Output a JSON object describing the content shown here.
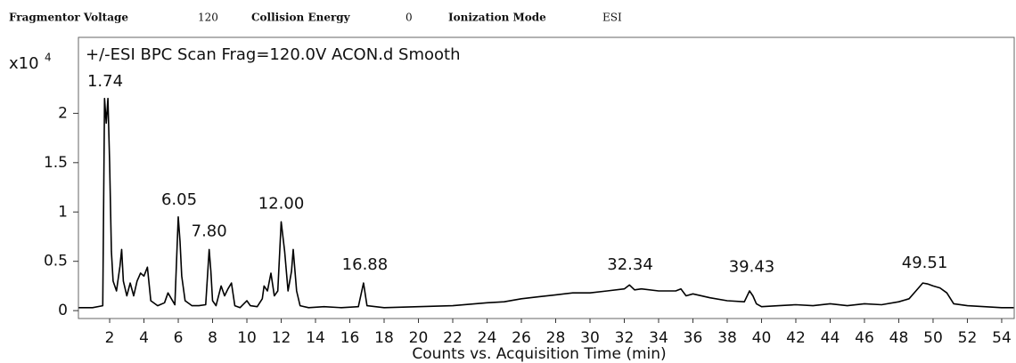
{
  "header": {
    "fields": [
      {
        "label": "Fragmentor Voltage",
        "value": 120
      },
      {
        "label": "Collision Energy",
        "value": 0
      },
      {
        "label": "Ionization Mode",
        "value": "ESI"
      }
    ]
  },
  "chart_data": {
    "type": "line",
    "title": "+/-ESI BPC Scan Frag=120.0V ACON.d  Smooth",
    "y_multiplier": {
      "base": "x10",
      "exponent": "4"
    },
    "xlabel": "Counts vs. Acquisition Time (min)",
    "xlim": [
      0.18,
      54.73
    ],
    "ylim": [
      -0.08,
      2.77
    ],
    "xticks": [
      2,
      4,
      6,
      8,
      10,
      12,
      14,
      16,
      18,
      20,
      22,
      24,
      26,
      28,
      30,
      32,
      34,
      36,
      38,
      40,
      42,
      44,
      46,
      48,
      50,
      52,
      54
    ],
    "yticks": [
      0,
      0.5,
      1,
      1.5,
      2
    ],
    "series": [
      {
        "color": "#000000",
        "x": [
          0.2,
          1.0,
          1.6,
          1.7,
          1.8,
          1.9,
          2.0,
          2.1,
          2.2,
          2.4,
          2.6,
          2.7,
          2.8,
          3.0,
          3.2,
          3.4,
          3.6,
          3.8,
          4.0,
          4.2,
          4.4,
          4.8,
          5.2,
          5.4,
          5.6,
          5.8,
          6.0,
          6.1,
          6.2,
          6.4,
          6.8,
          7.2,
          7.6,
          7.8,
          7.9,
          8.0,
          8.2,
          8.5,
          8.7,
          8.9,
          9.1,
          9.3,
          9.6,
          10.0,
          10.2,
          10.6,
          10.9,
          11.0,
          11.2,
          11.4,
          11.6,
          11.8,
          12.0,
          12.2,
          12.4,
          12.6,
          12.7,
          12.9,
          13.1,
          13.6,
          14.5,
          15.5,
          16.5,
          16.8,
          17.0,
          18,
          20,
          22,
          24,
          25,
          26,
          27,
          28,
          29,
          30,
          31,
          32,
          32.3,
          32.6,
          33,
          34,
          35,
          35.3,
          35.6,
          36,
          37,
          38,
          39,
          39.3,
          39.5,
          39.7,
          40,
          41,
          42,
          43,
          44,
          45,
          46,
          47,
          48,
          48.6,
          49,
          49.4,
          49.7,
          50,
          50.4,
          50.8,
          51.2,
          52,
          53,
          54,
          54.7
        ],
        "values": [
          0.03,
          0.03,
          0.05,
          2.15,
          1.9,
          2.15,
          1.5,
          0.6,
          0.3,
          0.2,
          0.45,
          0.62,
          0.3,
          0.15,
          0.28,
          0.15,
          0.3,
          0.38,
          0.35,
          0.44,
          0.1,
          0.05,
          0.08,
          0.18,
          0.12,
          0.06,
          0.95,
          0.7,
          0.35,
          0.1,
          0.05,
          0.05,
          0.06,
          0.62,
          0.4,
          0.1,
          0.05,
          0.25,
          0.15,
          0.22,
          0.28,
          0.05,
          0.03,
          0.1,
          0.05,
          0.04,
          0.12,
          0.25,
          0.2,
          0.38,
          0.15,
          0.2,
          0.9,
          0.6,
          0.2,
          0.4,
          0.62,
          0.2,
          0.05,
          0.03,
          0.04,
          0.03,
          0.04,
          0.28,
          0.05,
          0.03,
          0.04,
          0.05,
          0.08,
          0.09,
          0.12,
          0.14,
          0.16,
          0.18,
          0.18,
          0.2,
          0.22,
          0.26,
          0.21,
          0.22,
          0.2,
          0.2,
          0.22,
          0.15,
          0.17,
          0.13,
          0.1,
          0.09,
          0.2,
          0.15,
          0.07,
          0.04,
          0.05,
          0.06,
          0.05,
          0.07,
          0.05,
          0.07,
          0.06,
          0.09,
          0.12,
          0.2,
          0.28,
          0.27,
          0.25,
          0.23,
          0.18,
          0.07,
          0.05,
          0.04,
          0.03,
          0.03
        ]
      }
    ],
    "annotations": [
      {
        "label": "1.74",
        "x": 1.74,
        "y": 2.32
      },
      {
        "label": "6.05",
        "x": 6.05,
        "y": 1.12
      },
      {
        "label": "7.80",
        "x": 7.8,
        "y": 0.8
      },
      {
        "label": "12.00",
        "x": 12.0,
        "y": 1.08
      },
      {
        "label": "16.88",
        "x": 16.88,
        "y": 0.46
      },
      {
        "label": "32.34",
        "x": 32.34,
        "y": 0.46
      },
      {
        "label": "39.43",
        "x": 39.43,
        "y": 0.44
      },
      {
        "label": "49.51",
        "x": 49.51,
        "y": 0.48
      }
    ]
  }
}
